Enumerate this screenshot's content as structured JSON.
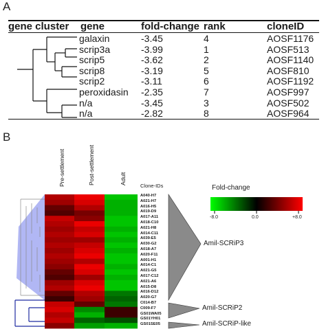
{
  "panel_a": {
    "letter": "A",
    "headers": {
      "cluster": "gene cluster",
      "gene": "gene",
      "fold": "fold-change",
      "rank": "rank",
      "clone": "cloneID"
    },
    "rows": [
      {
        "gene": "galaxin",
        "fold": "-3.45",
        "rank": "4",
        "clone": "AOSF1176"
      },
      {
        "gene": "scrip3a",
        "fold": "-3.99",
        "rank": "1",
        "clone": "AOSF513"
      },
      {
        "gene": "scrip5",
        "fold": "-3.62",
        "rank": "2",
        "clone": "AOSF1140"
      },
      {
        "gene": "scrip8",
        "fold": "-3.19",
        "rank": "5",
        "clone": "AOSF810"
      },
      {
        "gene": "scrip2",
        "fold": "-3.11",
        "rank": "6",
        "clone": "AOSF1192"
      },
      {
        "gene": "peroxidasin",
        "fold": "-2.35",
        "rank": "7",
        "clone": "AOSF997"
      },
      {
        "gene": "n/a",
        "fold": "-3.45",
        "rank": "3",
        "clone": "AOSF502"
      },
      {
        "gene": "n/a",
        "fold": "-2.82",
        "rank": "8",
        "clone": "AOSF964"
      }
    ]
  },
  "panel_b": {
    "letter": "B",
    "columns": [
      "Pre-settlement",
      "Post-settlement",
      "Adult"
    ],
    "clone_ids_header": "Clone-IDs",
    "clone_ids": [
      "A040-H7",
      "A021-H7",
      "A016-H5",
      "A019-D9",
      "A017-A11",
      "A018-C10",
      "A021-H8",
      "A014-C11",
      "A039-E5",
      "A030-G2",
      "A018-A7",
      "A020-F11",
      "A001-H1",
      "A014-C1",
      "A021-G5",
      "A017-C12",
      "A021-A6",
      "A015-D8",
      "A016-D12",
      "A020-G7",
      "C014-B7",
      "C009-F7",
      "GS01WA05",
      "GS01YH01",
      "GS01SE05"
    ],
    "heat_values": [
      [
        0.6,
        0.9,
        -0.7
      ],
      [
        0.5,
        0.8,
        -0.6
      ],
      [
        0.2,
        0.6,
        -0.6
      ],
      [
        0.1,
        0.3,
        -0.6
      ],
      [
        0.7,
        0.4,
        -0.7
      ],
      [
        0.6,
        0.9,
        -0.7
      ],
      [
        0.5,
        0.7,
        -0.6
      ],
      [
        0.6,
        0.8,
        -0.7
      ],
      [
        0.5,
        0.5,
        -0.6
      ],
      [
        0.6,
        0.7,
        -0.7
      ],
      [
        0.5,
        0.8,
        -0.6
      ],
      [
        0.6,
        0.9,
        -0.7
      ],
      [
        0.5,
        0.6,
        -0.7
      ],
      [
        0.4,
        0.9,
        -0.6
      ],
      [
        0.2,
        0.8,
        -0.7
      ],
      [
        0.1,
        0.5,
        -0.6
      ],
      [
        0.5,
        0.8,
        -0.7
      ],
      [
        0.6,
        0.9,
        -0.7
      ],
      [
        0.2,
        0.6,
        -0.3
      ],
      [
        0.0,
        0.5,
        -0.2
      ],
      [
        0.7,
        0.2,
        -0.3
      ],
      [
        0.8,
        -0.4,
        0.0
      ],
      [
        0.6,
        -0.6,
        0.0
      ],
      [
        0.7,
        -0.2,
        -0.1
      ],
      [
        0.4,
        -0.5,
        -0.6
      ]
    ],
    "legend": {
      "title": "Fold-change",
      "min_label": "-8.0",
      "mid_label": "0.0",
      "max_label": "+8.0"
    },
    "clusters": [
      "Amil-SCRiP3",
      "Amil-SCRiP2",
      "Amil-SCRiP-like"
    ],
    "colors": {
      "red": "#ff0000",
      "black": "#000000",
      "green": "#00ff00",
      "tree_shade": "#9fa8f0",
      "triangle": "#8a8a8a"
    }
  }
}
